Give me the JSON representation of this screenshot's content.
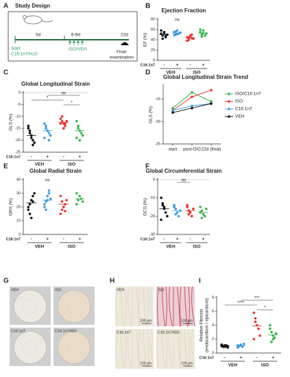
{
  "design": {
    "label": "A",
    "title": "Study Design",
    "steps": [
      "5d",
      "6-9d",
      "22d"
    ],
    "start": "Start",
    "treatment": "C16:1n7/H₂O",
    "injection": "ISO/VEH",
    "final": [
      "Final",
      "examination"
    ]
  },
  "chart_data": [
    {
      "type": "dot",
      "label": "B",
      "title": "Ejection Fraction",
      "ylabel": "EF (%)",
      "ylim": [
        0,
        80
      ],
      "yticks": [
        0,
        20,
        40,
        60,
        80
      ],
      "factor": "C16:1n7",
      "levels": [
        "-",
        "+",
        "-",
        "+"
      ],
      "groups": [
        "VEH",
        "ISO"
      ],
      "points": [
        {
          "color": "#111111",
          "values": [
            52,
            48,
            55,
            45,
            50,
            58,
            42,
            53,
            47
          ],
          "mean": 50
        },
        {
          "color": "#3d9be0",
          "values": [
            55,
            50,
            58,
            52,
            54,
            49,
            56,
            51
          ],
          "mean": 53
        },
        {
          "color": "#e8312f",
          "values": [
            45,
            40,
            48,
            50,
            42,
            38,
            44,
            47,
            43
          ],
          "mean": 44
        },
        {
          "color": "#36b34a",
          "values": [
            55,
            50,
            58,
            48,
            52,
            60,
            46,
            53
          ],
          "mean": 53
        }
      ],
      "annotations": [
        {
          "text": "ns",
          "between": [
            1,
            1
          ]
        }
      ]
    },
    {
      "type": "dot",
      "label": "C",
      "title": "Global Longitudinal Strain",
      "ylabel": "GLS (%)",
      "ylim": [
        -25,
        0
      ],
      "yticks": [
        0,
        -5,
        -10,
        -15,
        -20,
        -25
      ],
      "hline": 0,
      "factor": "C16:1n7",
      "levels": [
        "-",
        "+",
        "-",
        "+"
      ],
      "groups": [
        "VEH",
        "ISO"
      ],
      "points": [
        {
          "color": "#111111",
          "values": [
            -15,
            -17,
            -19,
            -20,
            -21,
            -14,
            -16,
            -18,
            -22
          ],
          "mean": -18
        },
        {
          "color": "#3d9be0",
          "values": [
            -13,
            -15,
            -16,
            -17,
            -18,
            -19,
            -14,
            -16,
            -20
          ],
          "mean": -16
        },
        {
          "color": "#e8312f",
          "values": [
            -11,
            -12,
            -13,
            -14,
            -12,
            -13,
            -10,
            -15,
            -13
          ],
          "mean": -12.5
        },
        {
          "color": "#36b34a",
          "values": [
            -12,
            -14,
            -16,
            -17,
            -18,
            -19,
            -15,
            -20
          ],
          "mean": -16
        }
      ],
      "annotations": [
        {
          "text": "*",
          "between": [
            2,
            3
          ]
        },
        {
          "text": "*",
          "between": [
            0,
            2
          ]
        },
        {
          "text": "ns",
          "between": [
            1,
            3
          ]
        }
      ]
    },
    {
      "type": "line",
      "label": "D",
      "title": "Global Longitudinal Strain Trend",
      "ylabel": "GLS (%)",
      "categories": [
        "start",
        "post-ISO",
        "22d (final)"
      ],
      "ylim": [
        -25,
        -12
      ],
      "yticks": [
        -15,
        -20,
        -25
      ],
      "series": [
        {
          "name": "ISO/C16:1n7",
          "color": "#36b34a",
          "values": [
            -17,
            -13.5,
            -15.5
          ]
        },
        {
          "name": "ISO",
          "color": "#e8312f",
          "values": [
            -17.5,
            -14.5,
            -13
          ]
        },
        {
          "name": "C16:1n7",
          "color": "#3d9be0",
          "values": [
            -17.5,
            -16.5,
            -16
          ]
        },
        {
          "name": "VEH",
          "color": "#111111",
          "values": [
            -18,
            -17,
            -16
          ]
        }
      ]
    },
    {
      "type": "dot",
      "label": "E",
      "title": "Global Radial Strain",
      "ylabel": "GRS (%)",
      "ylim": [
        0,
        40
      ],
      "yticks": [
        0,
        10,
        20,
        30,
        40
      ],
      "factor": "C16:1n7",
      "levels": [
        "-",
        "+",
        "-",
        "+"
      ],
      "groups": [
        "VEH",
        "ISO"
      ],
      "points": [
        {
          "color": "#111111",
          "values": [
            18,
            22,
            25,
            28,
            30,
            20,
            15,
            12,
            24
          ],
          "mean": 23
        },
        {
          "color": "#3d9be0",
          "values": [
            20,
            24,
            28,
            30,
            26,
            22,
            18,
            25,
            32
          ],
          "mean": 25
        },
        {
          "color": "#e8312f",
          "values": [
            15,
            18,
            20,
            22,
            25,
            28,
            24,
            20,
            17
          ],
          "mean": 22
        },
        {
          "color": "#36b34a",
          "values": [
            22,
            25,
            28,
            26,
            24,
            30
          ],
          "mean": 26
        }
      ],
      "annotations": [
        {
          "text": "ns",
          "between": [
            1,
            1
          ]
        }
      ]
    },
    {
      "type": "dot",
      "label": "F",
      "title": "Global Circumferential Strain",
      "ylabel": "GCS (%)",
      "ylim": [
        -30,
        0
      ],
      "yticks": [
        0,
        -10,
        -20,
        -30
      ],
      "hline": 0,
      "factor": "C16:1n7",
      "levels": [
        "-",
        "+",
        "-",
        "+"
      ],
      "groups": [
        "VEH",
        "ISO"
      ],
      "points": [
        {
          "color": "#111111",
          "values": [
            -10,
            -14,
            -16,
            -18,
            -20,
            -22,
            -13,
            -15
          ],
          "mean": -16
        },
        {
          "color": "#3d9be0",
          "values": [
            -14,
            -16,
            -18,
            -20,
            -17,
            -15,
            -19
          ],
          "mean": -17
        },
        {
          "color": "#e8312f",
          "values": [
            -15,
            -17,
            -18,
            -20,
            -16,
            -14,
            -19,
            -18
          ],
          "mean": -17
        },
        {
          "color": "#36b34a",
          "values": [
            -15,
            -17,
            -19,
            -20,
            -16,
            -18,
            -21
          ],
          "mean": -18
        }
      ],
      "annotations": [
        {
          "text": "ns",
          "between": [
            1,
            2
          ]
        }
      ]
    },
    {
      "type": "dot",
      "label": "I",
      "ylabel": [
        "Relative Fibrosis",
        "(endocardium / epicardium)"
      ],
      "ylim": [
        0,
        8
      ],
      "yticks": [
        0,
        2,
        4,
        6,
        8
      ],
      "factor": "C16:1n7",
      "levels": [
        "-",
        "+",
        "-",
        "+"
      ],
      "groups": [
        "VEH",
        "ISO"
      ],
      "points": [
        {
          "color": "#111111",
          "values": [
            1.0,
            0.9,
            1.1,
            1.0,
            0.8,
            1.2,
            1.0,
            0.9,
            1.1,
            1.0
          ],
          "mean": 1.0
        },
        {
          "color": "#3d9be0",
          "values": [
            0.8,
            1.0,
            1.2,
            0.9,
            1.3,
            1.1,
            1.0
          ],
          "mean": 1.05
        },
        {
          "color": "#e8312f",
          "values": [
            5.8,
            5.0,
            4.0,
            3.5,
            2.5,
            2.0,
            4.5
          ],
          "mean": 3.9
        },
        {
          "color": "#36b34a",
          "values": [
            3.5,
            3.0,
            2.5,
            2.2,
            2.8,
            4.0,
            1.6,
            2.0
          ],
          "mean": 2.6
        }
      ],
      "annotations": [
        {
          "text": "*",
          "between": [
            2,
            3
          ]
        },
        {
          "text": "****",
          "between": [
            0,
            2
          ]
        },
        {
          "text": "***",
          "between": [
            1,
            3
          ]
        }
      ]
    }
  ],
  "images": [
    {
      "label": "G",
      "panels": [
        "VEH",
        "ISO",
        "C16:1n7",
        "C16:1n7/ISO"
      ]
    },
    {
      "label": "H",
      "panels": [
        "VEH",
        "ISO",
        "C16:1n7",
        "C16:1n7/ISO"
      ],
      "scale": "100 µm"
    }
  ]
}
